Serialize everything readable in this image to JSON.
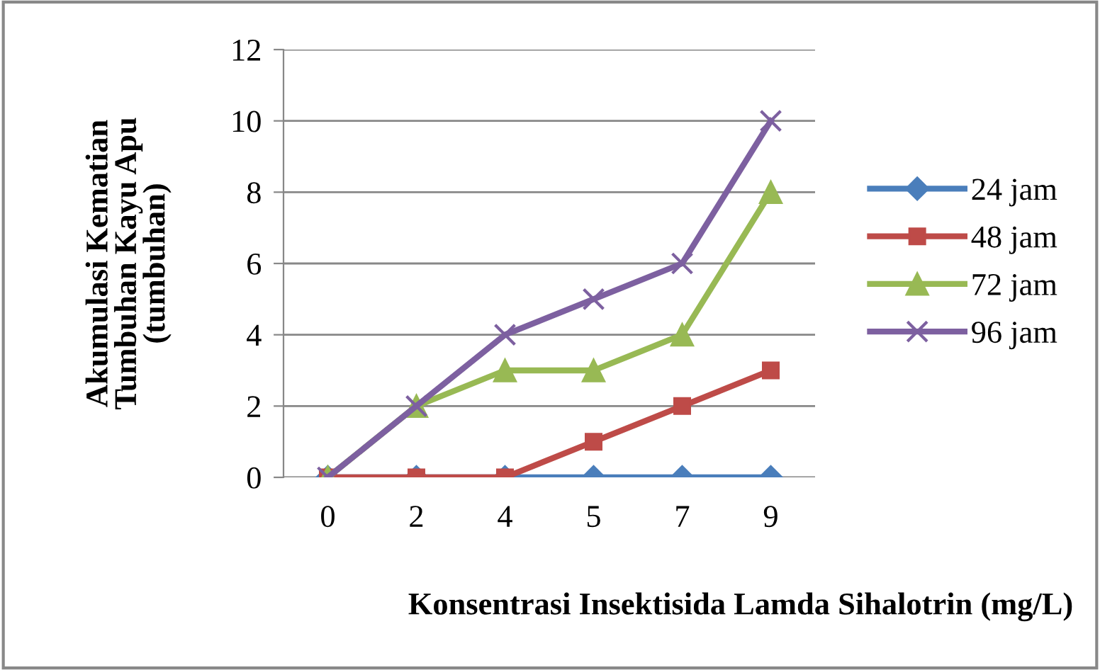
{
  "chart_data": {
    "type": "line",
    "xlabel": "Konsentrasi Insektisida Lamda Sihalotrin (mg/L)",
    "ylabel": "Akumulasi Kematian\nTumbuhan Kayu Apu\n(tumbuhan)",
    "categories": [
      "0",
      "2",
      "4",
      "5",
      "7",
      "9"
    ],
    "series": [
      {
        "name": "24 jam",
        "color": "#4a7ebb",
        "marker": "diamond",
        "values": [
          0,
          0,
          0,
          0,
          0,
          0
        ]
      },
      {
        "name": "48 jam",
        "color": "#be4b48",
        "marker": "square",
        "values": [
          0,
          0,
          0,
          1,
          2,
          3
        ]
      },
      {
        "name": "72 jam",
        "color": "#98b954",
        "marker": "triangle",
        "values": [
          0,
          2,
          3,
          3,
          4,
          8
        ]
      },
      {
        "name": "96 jam",
        "color": "#7d60a0",
        "marker": "cross",
        "values": [
          0,
          2,
          4,
          5,
          6,
          10
        ]
      }
    ],
    "ylim": [
      0,
      12
    ],
    "yticks": [
      0,
      2,
      4,
      6,
      8,
      10,
      12
    ],
    "grid": "y",
    "legend": "right"
  }
}
